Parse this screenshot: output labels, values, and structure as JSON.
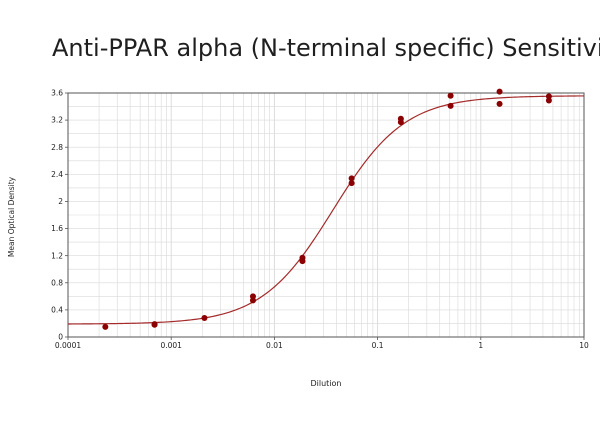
{
  "chart_data": {
    "type": "scatter",
    "title": "Anti-PPAR alpha (N-terminal specific) Sensitivity",
    "xlabel": "Dilution",
    "ylabel": "Mean Optical Density",
    "x_scale": "log",
    "xlim": [
      0.0001,
      10
    ],
    "ylim": [
      0,
      3.6
    ],
    "x_ticks": [
      0.0001,
      0.001,
      0.01,
      0.1,
      1,
      10
    ],
    "x_tick_labels": [
      "0.0001",
      "0.001",
      "0.01",
      "0.1",
      "1",
      "10"
    ],
    "y_ticks": [
      0,
      0.4,
      0.8,
      1.2,
      1.6,
      2,
      2.4,
      2.8,
      3.2,
      3.6
    ],
    "y_tick_labels": [
      "0",
      "0.4",
      "0.8",
      "1.2",
      "1.6",
      "2",
      "2.4",
      "2.8",
      "3.2",
      "3.6"
    ],
    "grid": true,
    "colors": {
      "points": "#8b0000",
      "curve": "#a52a2a",
      "grid": "#d9d9d9",
      "frame": "#555555"
    },
    "series": [
      {
        "points": [
          {
            "x": 0.00023,
            "y": 0.15
          },
          {
            "x": 0.00069,
            "y": 0.19
          },
          {
            "x": 0.00069,
            "y": 0.18
          },
          {
            "x": 0.0021,
            "y": 0.28
          },
          {
            "x": 0.0062,
            "y": 0.6
          },
          {
            "x": 0.0062,
            "y": 0.54
          },
          {
            "x": 0.0187,
            "y": 1.17
          },
          {
            "x": 0.0187,
            "y": 1.12
          },
          {
            "x": 0.056,
            "y": 2.34
          },
          {
            "x": 0.056,
            "y": 2.27
          },
          {
            "x": 0.168,
            "y": 3.22
          },
          {
            "x": 0.168,
            "y": 3.17
          },
          {
            "x": 0.51,
            "y": 3.56
          },
          {
            "x": 0.51,
            "y": 3.41
          },
          {
            "x": 1.52,
            "y": 3.62
          },
          {
            "x": 1.52,
            "y": 3.44
          },
          {
            "x": 4.57,
            "y": 3.55
          },
          {
            "x": 4.57,
            "y": 3.49
          }
        ]
      }
    ],
    "fit_curve": {
      "model": "4PL",
      "bottom": 0.19,
      "top": 3.56,
      "ec50": 0.037,
      "hill": 1.25
    }
  }
}
